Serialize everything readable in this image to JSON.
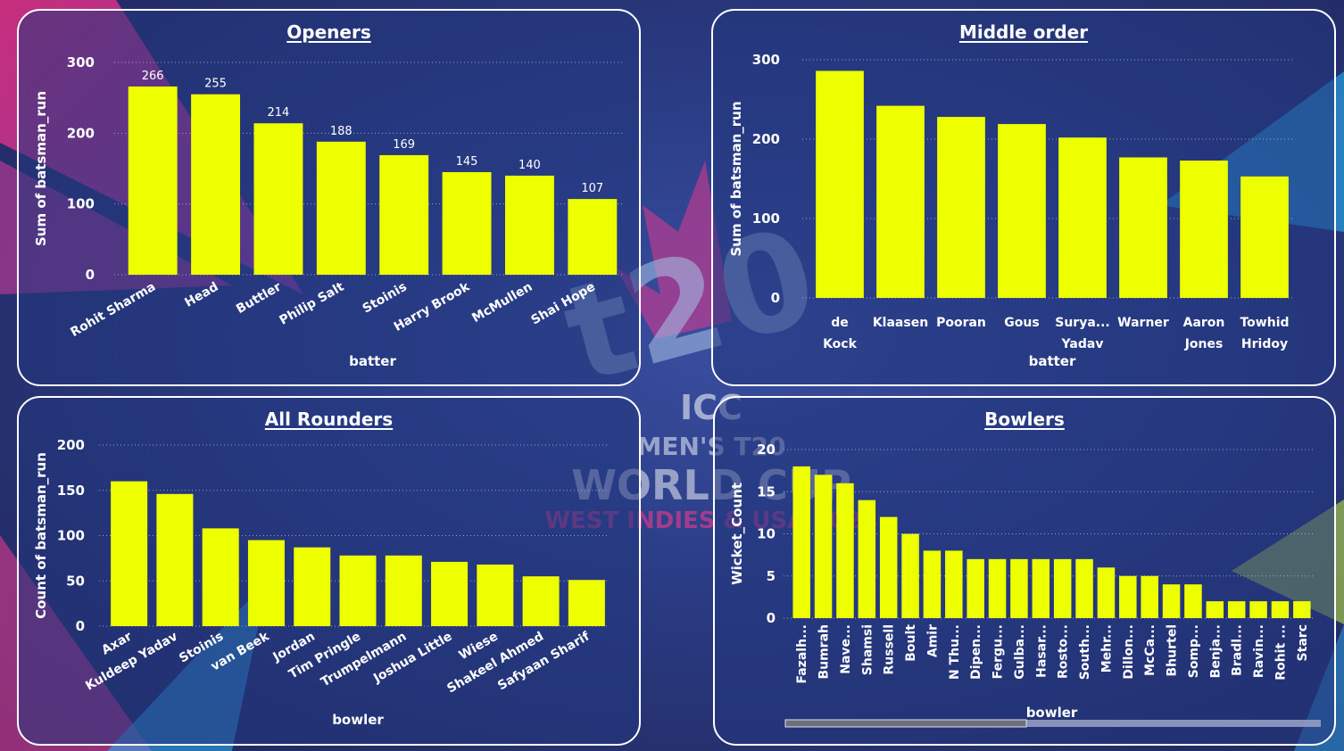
{
  "colors": {
    "bar": "#EEFF00",
    "panel_border": "#FFFFFF",
    "text": "#FFFFFF"
  },
  "background": {
    "logo": "t20",
    "logo_lines": [
      "ICC",
      "MEN'S T20",
      "WORLD CUP",
      "WEST INDIES & USA 2024"
    ]
  },
  "chart_data": [
    {
      "id": "openers",
      "type": "bar",
      "title": "Openers",
      "xlabel": "batter",
      "ylabel": "Sum of batsman_run",
      "ylim": [
        0,
        300
      ],
      "yticks": [
        0,
        100,
        200,
        300
      ],
      "grid": true,
      "data_labels": true,
      "categories": [
        "Rohit Sharma",
        "Head",
        "Buttler",
        "Philip Salt",
        "Stoinis",
        "Harry Brook",
        "McMullen",
        "Shai Hope"
      ],
      "values": [
        266,
        255,
        214,
        188,
        169,
        145,
        140,
        107
      ]
    },
    {
      "id": "middle",
      "type": "bar",
      "title": "Middle order",
      "xlabel": "batter",
      "ylabel": "Sum of batsman_run",
      "ylim": [
        0,
        300
      ],
      "yticks": [
        0,
        100,
        200,
        300
      ],
      "grid": true,
      "data_labels": false,
      "categories": [
        "de Kock",
        "Klaasen",
        "Pooran",
        "Gous",
        "Surya... Yadav",
        "Warner",
        "Aaron Jones",
        "Towhid Hridoy"
      ],
      "values": [
        286,
        242,
        228,
        219,
        202,
        177,
        173,
        153
      ]
    },
    {
      "id": "rounders",
      "type": "bar",
      "title": "All Rounders",
      "xlabel": "bowler",
      "ylabel": "Count of batsman_run",
      "ylim": [
        0,
        200
      ],
      "yticks": [
        0,
        50,
        100,
        150,
        200
      ],
      "grid": true,
      "data_labels": false,
      "categories": [
        "Axar",
        "Kuldeep Yadav",
        "Stoinis",
        "van Beek",
        "Jordan",
        "Tim Pringle",
        "Trumpelmann",
        "Joshua Little",
        "Wiese",
        "Shakeel Ahmed",
        "Safyaan Sharif"
      ],
      "values": [
        160,
        146,
        108,
        95,
        87,
        78,
        78,
        71,
        68,
        55,
        51
      ]
    },
    {
      "id": "bowlers",
      "type": "bar",
      "title": "Bowlers",
      "xlabel": "bowler",
      "ylabel": "Wicket_Count",
      "ylim": [
        0,
        20
      ],
      "yticks": [
        0,
        5,
        10,
        15,
        20
      ],
      "grid": true,
      "data_labels": false,
      "categories": [
        "Fazalh...",
        "Bumrah",
        "Nave...",
        "Shamsi",
        "Russell",
        "Boult",
        "Amir",
        "N Thu...",
        "Dipen...",
        "Fergu...",
        "Gulba...",
        "Hasar...",
        "Rosto...",
        "South...",
        "Mehr...",
        "Dillon...",
        "McCa...",
        "Bhurtel",
        "Somp...",
        "Benja...",
        "Bradl...",
        "Ravin...",
        "Rohit ...",
        "Starc"
      ],
      "values": [
        18,
        17,
        16,
        14,
        12,
        10,
        8,
        8,
        7,
        7,
        7,
        7,
        7,
        7,
        6,
        5,
        5,
        4,
        4,
        2,
        2,
        2,
        2,
        2
      ],
      "scrollbar_fraction": 0.45
    }
  ]
}
